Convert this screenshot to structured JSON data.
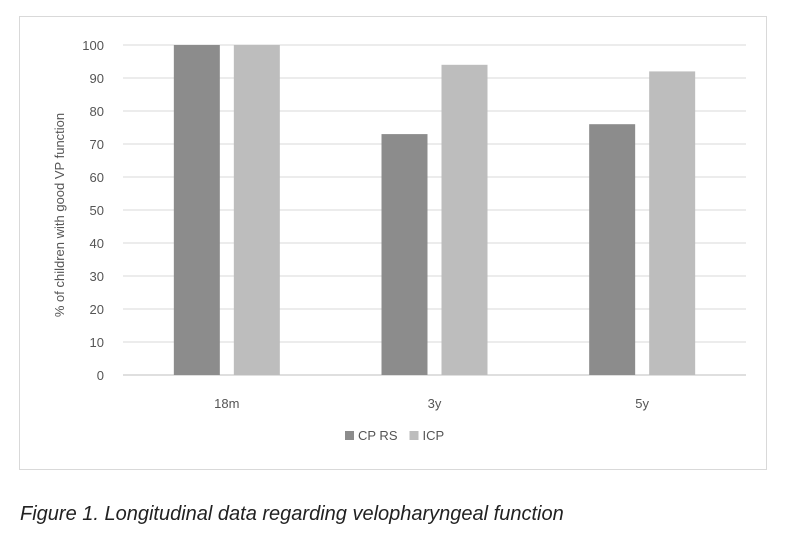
{
  "caption": "Figure 1. Longitudinal data regarding velopharyngeal function",
  "chart_data": {
    "type": "bar",
    "categories": [
      "18m",
      "3y",
      "5y"
    ],
    "series": [
      {
        "name": "CP RS",
        "values": [
          100,
          73,
          76
        ],
        "color": "#8c8c8c"
      },
      {
        "name": "ICP",
        "values": [
          100,
          94,
          92
        ],
        "color": "#bdbdbd"
      }
    ],
    "ylabel": "% of children with good VP function",
    "ylim": [
      0,
      100
    ],
    "yticks": [
      "0",
      "10",
      "20",
      "30",
      "40",
      "50",
      "60",
      "70",
      "80",
      "90",
      "100"
    ],
    "grid": true,
    "legend_position": "bottom"
  }
}
